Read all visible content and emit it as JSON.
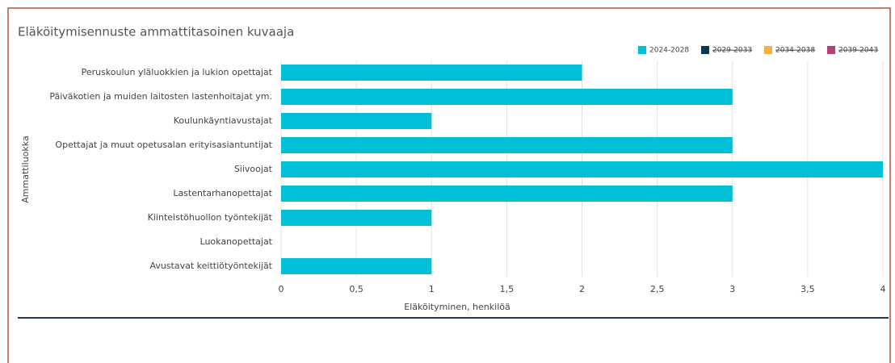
{
  "chart_data": {
    "type": "bar",
    "orientation": "horizontal",
    "title": "Eläköitymisennuste ammattitasoinen kuvaaja",
    "x_label": "Eläköityminen, henkilöä",
    "y_label": "Ammattiluokka",
    "categories": [
      "Peruskoulun yläluokkien ja lukion opettajat",
      "Päiväkotien ja muiden laitosten lastenhoitajat ym.",
      "Koulunkäyntiavustajat",
      "Opettajat ja muut opetusalan erityisasiantuntijat",
      "Siivoojat",
      "Lastentarhanopettajat",
      "Kiinteistöhuollon työntekijät",
      "Luokanopettajat",
      "Avustavat keittiötyöntekijät"
    ],
    "series": [
      {
        "name": "2024-2028",
        "color": "#00bfd6",
        "visible": true,
        "values": [
          2,
          3,
          1,
          3,
          4,
          3,
          1,
          0,
          1
        ]
      },
      {
        "name": "2029-2033",
        "color": "#0b3a4f",
        "visible": false,
        "values": [
          null,
          null,
          null,
          null,
          null,
          null,
          null,
          null,
          null
        ]
      },
      {
        "name": "2034-2038",
        "color": "#f5b041",
        "visible": false,
        "values": [
          null,
          null,
          null,
          null,
          null,
          null,
          null,
          null,
          null
        ]
      },
      {
        "name": "2039-2043",
        "color": "#b5407a",
        "visible": false,
        "values": [
          null,
          null,
          null,
          null,
          null,
          null,
          null,
          null,
          null
        ]
      }
    ],
    "xlim": [
      0,
      4
    ],
    "xticks": [
      0,
      {
        "value": 0.5,
        "label": "0,5"
      },
      1,
      {
        "value": 1.5,
        "label": "1,5"
      },
      2,
      {
        "value": 2.5,
        "label": "2,5"
      },
      3,
      {
        "value": 3.5,
        "label": "3,5"
      },
      4
    ],
    "grid": true,
    "legend": "top-right"
  }
}
